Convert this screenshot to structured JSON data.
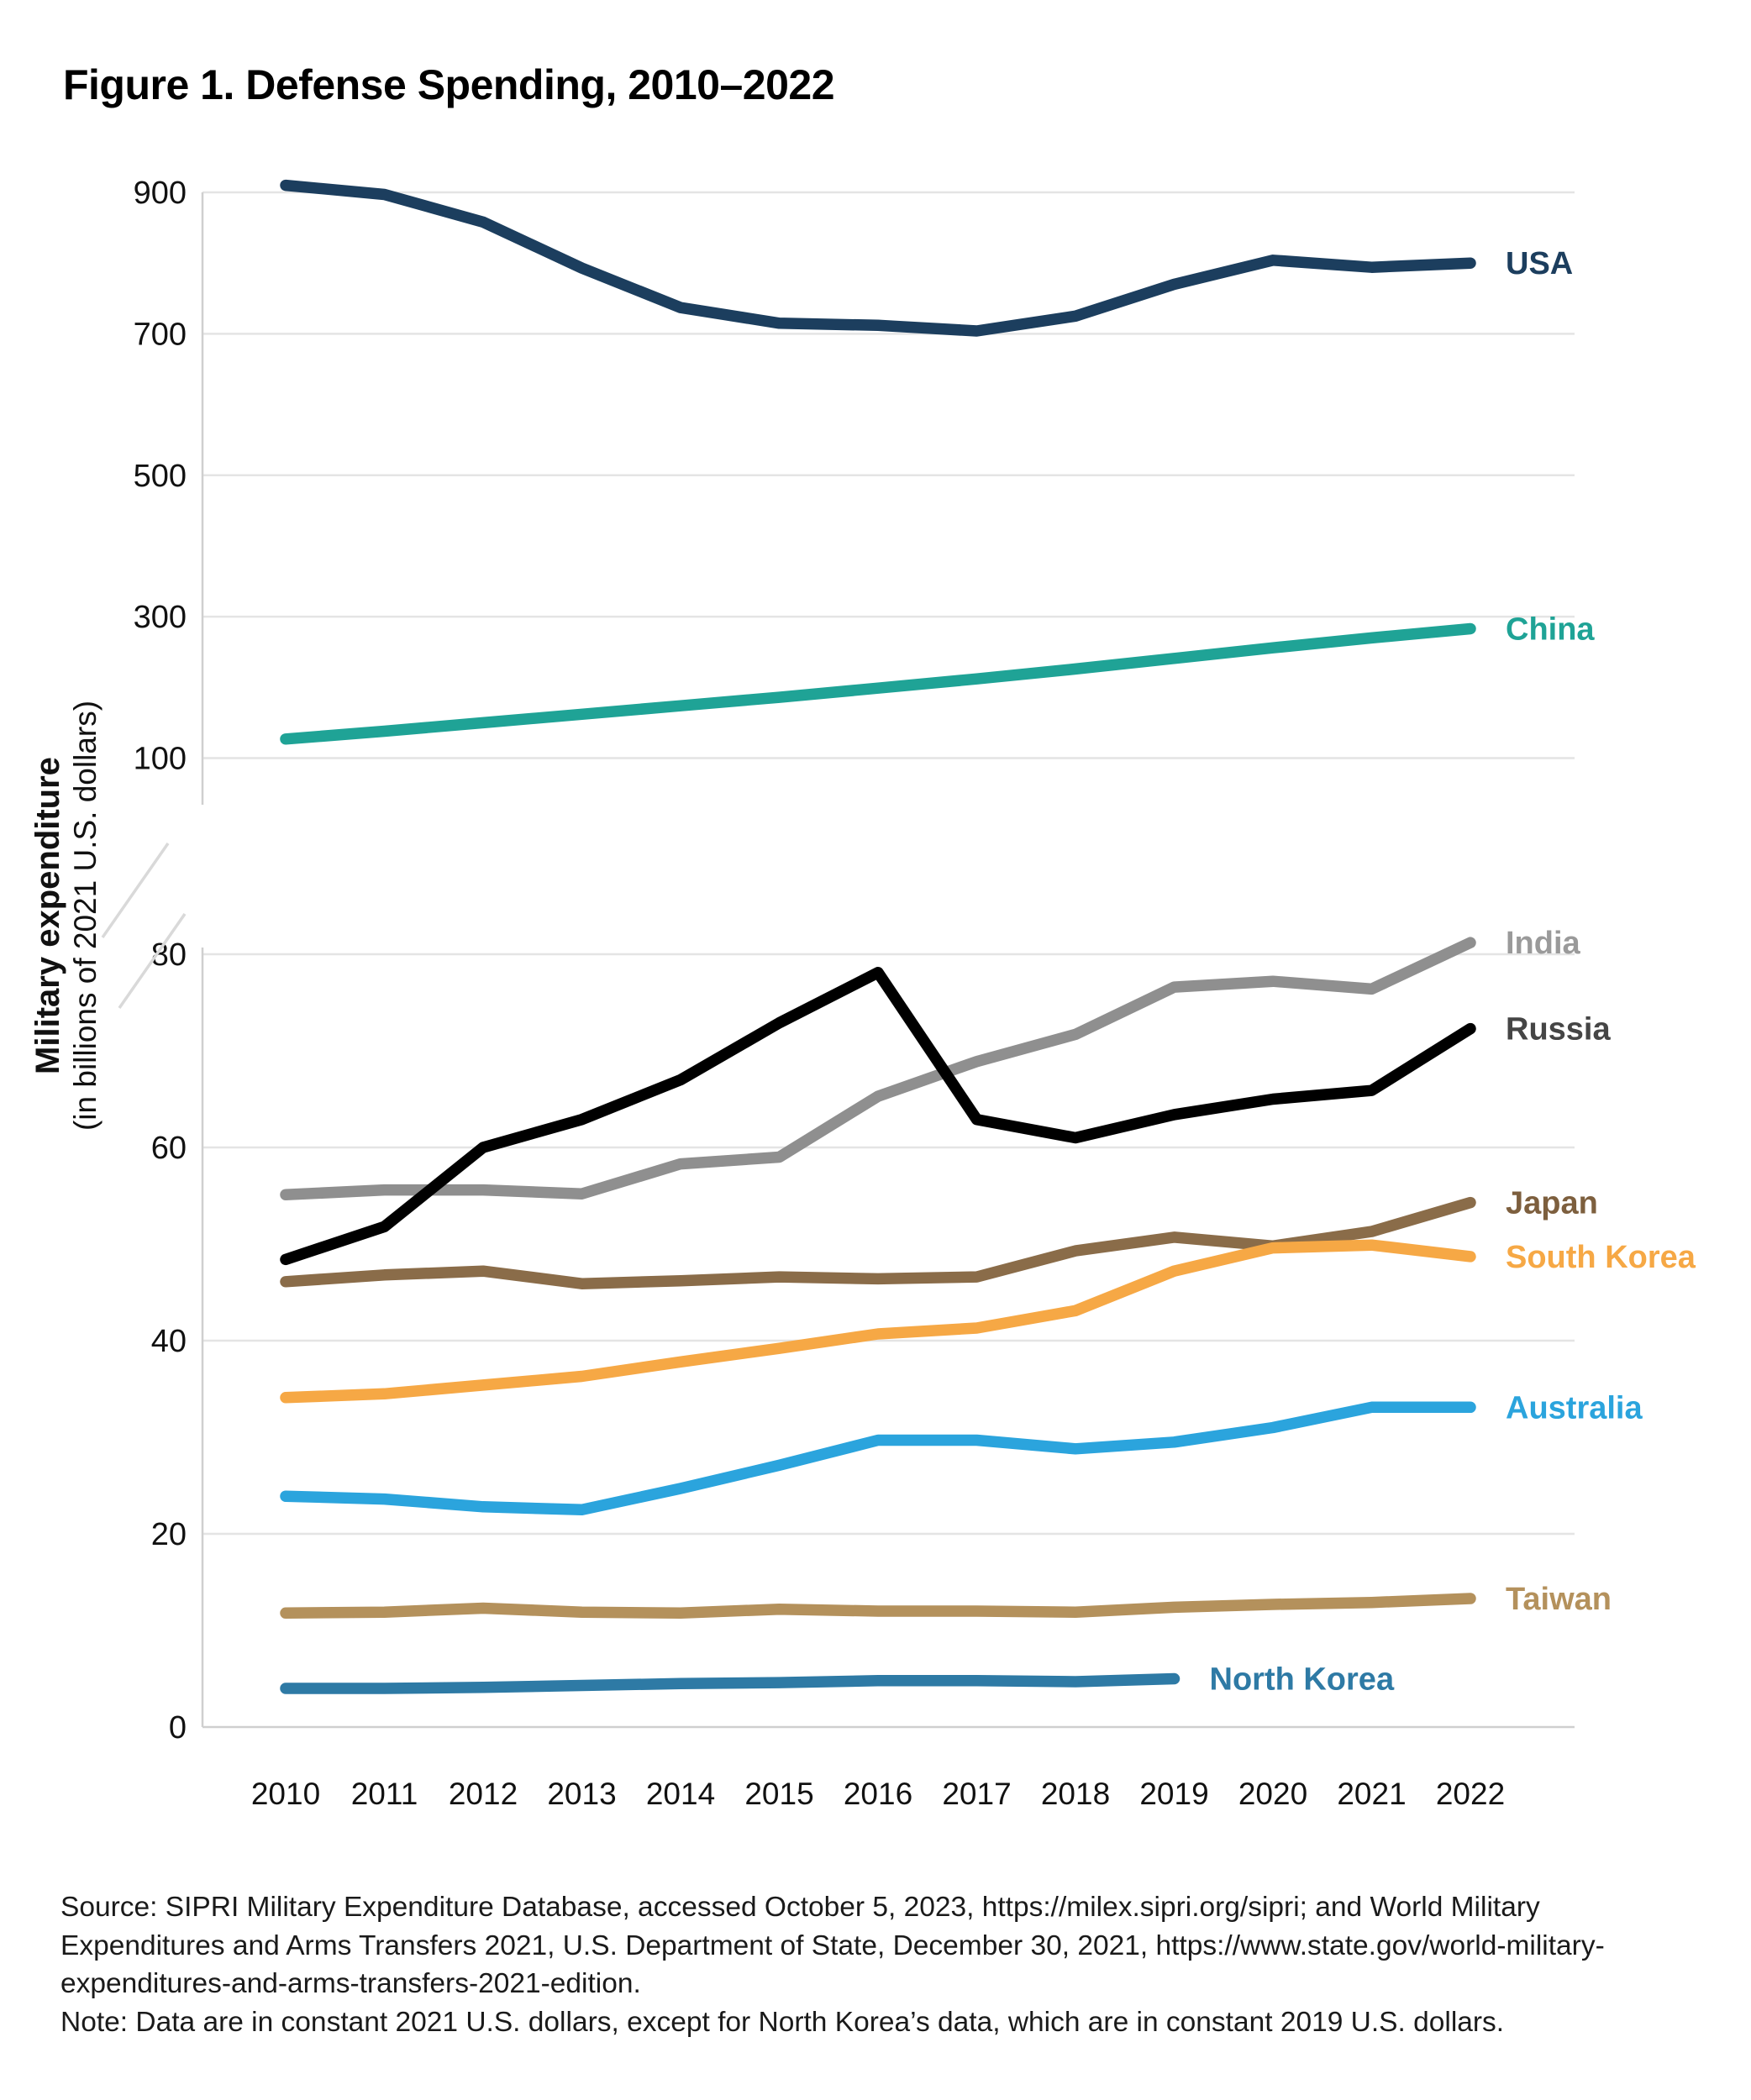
{
  "figure": {
    "title": "Figure 1. Defense Spending, 2010–2022",
    "source": "Source: SIPRI Military Expenditure Database, accessed October 5, 2023, https://milex.sipri.org/sipri; and World Military Expenditures and Arms Transfers 2021, U.S. Department of State, December 30, 2021, https://www.state.gov/world-military-expenditures-and-arms-transfers-2021-edition.",
    "note": "Note: Data are in constant 2021 U.S. dollars, except for North Korea’s data, which are in constant 2019 U.S. dollars."
  },
  "chart_data": {
    "type": "line",
    "title": "Figure 1. Defense Spending, 2010–2022",
    "xlabel": "",
    "ylabel_bold": "Military expenditure",
    "ylabel_sub": "(in billions of 2021 U.S. dollars)",
    "broken_y_axis": true,
    "upper_axis_ticks": [
      900,
      700,
      500,
      300,
      100
    ],
    "lower_axis_ticks": [
      80,
      60,
      40,
      20,
      0
    ],
    "grid": true,
    "legend_position": "right-end-labels",
    "x": [
      2010,
      2011,
      2012,
      2013,
      2014,
      2015,
      2016,
      2017,
      2018,
      2019,
      2020,
      2021,
      2022
    ],
    "series": [
      {
        "name": "USA",
        "color": "#1c3e5e",
        "label_color": "#1c3e5e",
        "values": [
          910,
          897,
          858,
          793,
          737,
          715,
          712,
          704,
          725,
          770,
          804,
          794,
          800
        ]
      },
      {
        "name": "China",
        "color": "#1fa396",
        "label_color": "#1fa396",
        "values": [
          127,
          138,
          150,
          162,
          174,
          186,
          199,
          212,
          226,
          241,
          256,
          270,
          283
        ]
      },
      {
        "name": "India",
        "color": "#8f8f8f",
        "label_color": "#9a9a9a",
        "values": [
          55.1,
          55.6,
          55.6,
          55.2,
          58.3,
          59,
          65.3,
          68.9,
          71.7,
          76.6,
          77.2,
          76.4,
          81.2
        ]
      },
      {
        "name": "Russia",
        "color": "#000000",
        "label_color": "#454545",
        "values": [
          48.4,
          51.8,
          60,
          62.9,
          67,
          72.9,
          78.1,
          62.9,
          61,
          63.4,
          65,
          65.9,
          72.3
        ]
      },
      {
        "name": "Japan",
        "color": "#8a6c49",
        "label_color": "#7d5f3e",
        "values": [
          46.1,
          46.8,
          47.2,
          45.9,
          46.2,
          46.6,
          46.4,
          46.6,
          49.3,
          50.7,
          49.8,
          51.3,
          54.3
        ]
      },
      {
        "name": "South Korea",
        "color": "#f6a845",
        "label_color": "#f6a845",
        "values": [
          34.1,
          34.5,
          35.4,
          36.3,
          37.8,
          39.2,
          40.7,
          41.3,
          43.1,
          47.2,
          49.6,
          49.9,
          48.7
        ]
      },
      {
        "name": "Australia",
        "color": "#2ba4dd",
        "label_color": "#2ba4dd",
        "values": [
          23.9,
          23.6,
          22.8,
          22.5,
          24.7,
          27.1,
          29.7,
          29.7,
          28.8,
          29.5,
          31,
          33.1,
          33.1
        ]
      },
      {
        "name": "Taiwan",
        "color": "#b4915c",
        "label_color": "#b4915c",
        "values": [
          11.8,
          11.9,
          12.3,
          11.9,
          11.8,
          12.2,
          12,
          12,
          11.9,
          12.4,
          12.7,
          12.9,
          13.3
        ]
      },
      {
        "name": "North Korea",
        "color": "#2e7aa5",
        "label_color": "#2e7aa5",
        "values": [
          4,
          4,
          4.1,
          4.3,
          4.5,
          4.6,
          4.8,
          4.8,
          4.7,
          5,
          null,
          null,
          null
        ]
      }
    ]
  }
}
